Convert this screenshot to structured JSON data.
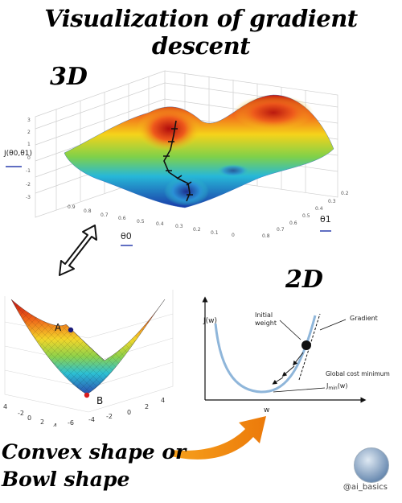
{
  "title": "Visualization of gradient descent",
  "label_3d": "3D",
  "label_2d": "2D",
  "plot3d": {
    "zlabel": "J(θ0,θ1)",
    "xlabel": "θ0",
    "ylabel": "θ1",
    "z_ticks": [
      "3",
      "2",
      "1",
      "0",
      "-1",
      "-2",
      "-3"
    ],
    "x_ticks": [
      "0.9",
      "0.8",
      "0.7",
      "0.6",
      "0.5",
      "0.4",
      "0.3",
      "0.2",
      "0.1",
      "0"
    ],
    "y_ticks": [
      "0.2",
      "0.3",
      "0.4",
      "0.5",
      "0.6",
      "0.7",
      "0.8"
    ]
  },
  "bowl": {
    "point_a": "A",
    "point_b": "B",
    "x_ticks": [
      "4",
      "2",
      "0",
      "-2",
      "-4",
      "-6"
    ],
    "y_ticks": [
      "-2",
      "0",
      "2",
      "4",
      "6"
    ],
    "left_ticks": [
      "4",
      "2",
      "0",
      "-2",
      "-4"
    ]
  },
  "plot2d": {
    "ylabel": "J(w)",
    "xlabel": "w",
    "initial_weight_line1": "Initial",
    "initial_weight_line2": "weight",
    "gradient": "Gradient",
    "global_min": "Global cost minimum",
    "jmin": "J",
    "jmin_sub": "min",
    "jmin_arg": "(w)"
  },
  "caption_line1": "Convex shape or",
  "caption_line2": "Bowl shape",
  "handle": "@ai_basics",
  "colors": {
    "arrow_orange": "#f08a12",
    "curve_blue": "#8fb6da",
    "min_marker": "#d81b1b",
    "point_a": "#1a1a7a"
  }
}
